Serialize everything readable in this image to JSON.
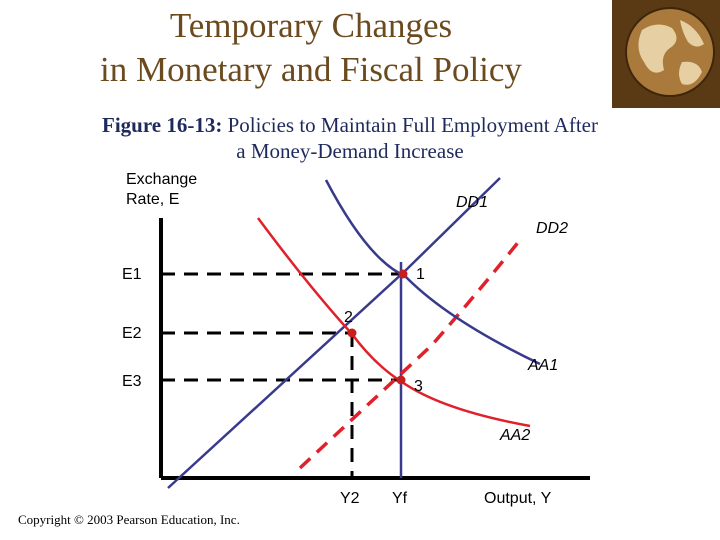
{
  "slide": {
    "title_line1": "Temporary Changes",
    "title_line2": "in Monetary and Fiscal Policy",
    "caption_prefix": "Figure 16-13:",
    "caption_line1": " Policies to Maintain Full Employment After",
    "caption_line2": "a Money-Demand Increase",
    "copyright": "Copyright © 2003 Pearson Education, Inc."
  },
  "diagram": {
    "y_axis_label_line1": "Exchange",
    "y_axis_label_line2": "Rate, E",
    "x_axis_label": "Output, Y",
    "curves": {
      "dd1": "DD1",
      "dd2": "DD2",
      "aa1": "AA1",
      "aa2": "AA2"
    },
    "levels": {
      "e1": "E1",
      "e2": "E2",
      "e3": "E3"
    },
    "outputs": {
      "y2": "Y2",
      "yf": "Yf"
    },
    "points": [
      "1",
      "2",
      "3"
    ],
    "colors": {
      "dd": "#3a3a8c",
      "aa": "#e0202a",
      "point": "#c81e1e",
      "title": "#6b4a1e",
      "caption": "#1f2a5c"
    }
  }
}
